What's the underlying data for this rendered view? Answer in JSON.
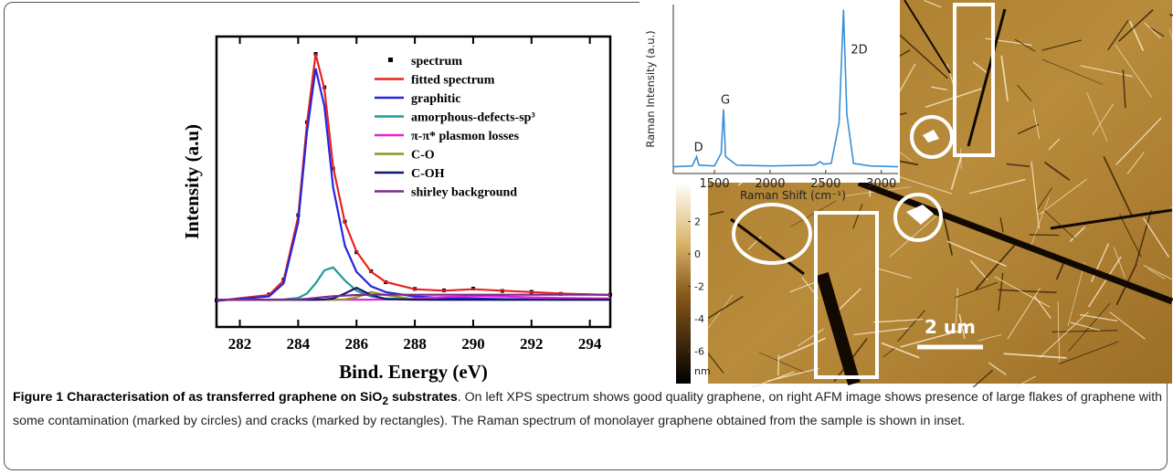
{
  "chart_data": [
    {
      "type": "line",
      "x_label": "Bind. Energy (eV)",
      "y_label": "Intensity (a.u)",
      "x": [
        281.2,
        283,
        283.5,
        284,
        284.3,
        284.6,
        284.9,
        285.2,
        285.6,
        286,
        286.5,
        287,
        288,
        289,
        290,
        291,
        292,
        293,
        294.7
      ],
      "xlim": [
        281.2,
        294.7
      ],
      "xticks": [
        282,
        284,
        286,
        288,
        290,
        292,
        294
      ],
      "ylim": [
        0,
        100
      ],
      "legend": "upper right",
      "series": [
        {
          "name": "spectrum",
          "color": "#000000",
          "mode": "markers",
          "values": [
            9.2,
            11.2,
            16.3,
            38.5,
            70.5,
            94,
            82.5,
            54.5,
            36.3,
            25.7,
            19.2,
            15.4,
            13.1,
            12.6,
            13.2,
            12.4,
            12.1,
            11.4,
            11.1
          ]
        },
        {
          "name": "fitted spectrum",
          "color": "#e8231f",
          "mode": "lines",
          "values": [
            9,
            11,
            16,
            38,
            70,
            94,
            82,
            55,
            36,
            26,
            19,
            15.5,
            13,
            12.5,
            13,
            12.5,
            12,
            11.5,
            11
          ]
        },
        {
          "name": "graphitic",
          "color": "#2525e0",
          "mode": "lines",
          "values": [
            9,
            10.5,
            15,
            36,
            67,
            89,
            76,
            48,
            28,
            19,
            14,
            12,
            10.5,
            10,
            9.8,
            9.6,
            9.5,
            9.4,
            9.4
          ]
        },
        {
          "name": "amorphous-defects-sp³",
          "color": "#1f9a98",
          "mode": "lines",
          "values": [
            9.4,
            9.4,
            9.5,
            10,
            11.5,
            15,
            19.5,
            20.5,
            16,
            12.5,
            10.5,
            9.8,
            9.5,
            9.4,
            9.4,
            9.4,
            9.4,
            9.4,
            9.4
          ]
        },
        {
          "name": "π-π* plasmon losses",
          "color": "#e820e0",
          "mode": "lines",
          "values": [
            9.4,
            9.4,
            9.4,
            9.4,
            9.4,
            9.4,
            9.4,
            9.4,
            9.4,
            9.4,
            9.4,
            9.5,
            9.8,
            10.3,
            10.6,
            10.5,
            10.2,
            10,
            9.8
          ]
        },
        {
          "name": "C-O",
          "color": "#8a9a1e",
          "mode": "lines",
          "values": [
            9.4,
            9.4,
            9.4,
            9.4,
            9.4,
            9.4,
            9.4,
            9.4,
            9.5,
            10.2,
            12,
            11,
            9.5,
            9.4,
            9.4,
            9.4,
            9.4,
            9.4,
            9.4
          ]
        },
        {
          "name": "C-OH",
          "color": "#16166e",
          "mode": "lines",
          "values": [
            9.4,
            9.4,
            9.4,
            9.4,
            9.4,
            9.4,
            9.5,
            9.8,
            11.5,
            13.5,
            11,
            9.6,
            9.4,
            9.4,
            9.4,
            9.4,
            9.4,
            9.4,
            9.4
          ]
        },
        {
          "name": "shirley background",
          "color": "#7a2a8a",
          "mode": "lines",
          "values": [
            9.4,
            9.4,
            9.4,
            9.5,
            9.7,
            10,
            10.3,
            10.6,
            10.8,
            11,
            11.1,
            11.1,
            11.1,
            11.1,
            11.1,
            11.1,
            11.1,
            11.1,
            11.1
          ]
        }
      ]
    },
    {
      "type": "line",
      "x_label": "Raman Shift (cm⁻¹)",
      "y_label": "Raman Intensity (a.u.)",
      "x": [
        1130,
        1300,
        1340,
        1360,
        1500,
        1560,
        1582,
        1600,
        1700,
        2000,
        2400,
        2450,
        2480,
        2550,
        2620,
        2660,
        2690,
        2750,
        2900,
        3150
      ],
      "xlim": [
        1130,
        3150
      ],
      "xticks": [
        1500,
        2000,
        2500,
        3000
      ],
      "ylim": [
        0,
        100
      ],
      "peak_labels": [
        "D",
        "G",
        "2D"
      ],
      "series": [
        {
          "name": null,
          "color": "#3a8fd6",
          "values": [
            4,
            4.5,
            10,
            5,
            4.5,
            12,
            38,
            10,
            5,
            4.5,
            5,
            7,
            5.5,
            6,
            30,
            97,
            35,
            6,
            4.5,
            4
          ]
        }
      ]
    }
  ],
  "afm": {
    "colorbar_lim": [
      -8,
      4.4
    ],
    "colorbar_ticks": [
      2,
      0,
      -2,
      -4,
      -6
    ],
    "colorbar_unit": "nm",
    "scale_bar": "2 um"
  },
  "caption": {
    "label": "Figure 1",
    "title_pre": "Characterisation of as transferred graphene on SiO",
    "title_sub": "2",
    "title_post": " substrates",
    "text": ". On left XPS spectrum shows good quality graphene, on right AFM image shows presence of large flakes of graphene with some contamination (marked by circles) and cracks (marked by rectangles). The Raman spectrum of monolayer graphene obtained from the sample is shown in inset."
  }
}
